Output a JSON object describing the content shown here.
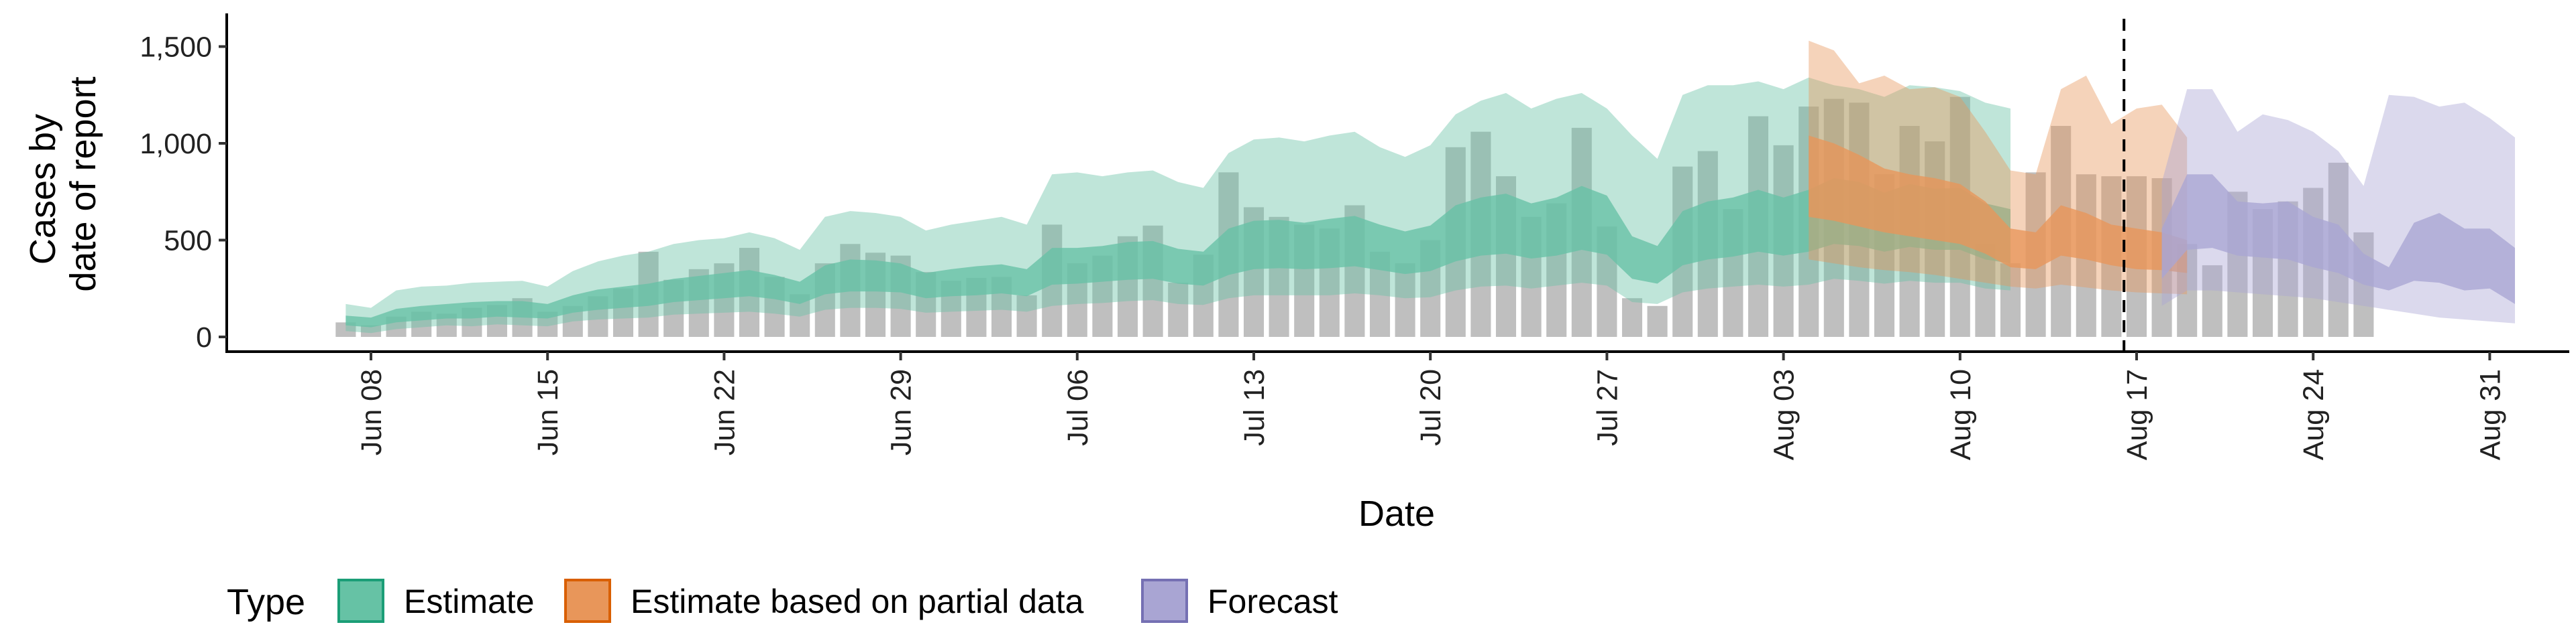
{
  "chart_data": {
    "type": "area",
    "xlabel": "Date",
    "ylabel_lines": [
      "Cases by",
      "date of report"
    ],
    "y_ticks": [
      0,
      500,
      1000,
      1500
    ],
    "y_tick_labels": [
      "0",
      "500",
      "1,000",
      "1,500"
    ],
    "ylim": [
      -70,
      1650
    ],
    "x_ticks": [
      "Jun 08",
      "Jun 15",
      "Jun 22",
      "Jun 29",
      "Jul 06",
      "Jul 13",
      "Jul 20",
      "Jul 27",
      "Aug 03",
      "Aug 10",
      "Aug 17",
      "Aug 24",
      "Aug 31"
    ],
    "x_tick_days": [
      0,
      7,
      14,
      21,
      28,
      35,
      42,
      49,
      56,
      63,
      70,
      77,
      84
    ],
    "x_origin_date": "Jun 08",
    "xlim_days": [
      -5.5,
      86.5
    ],
    "forecast_start_day": 69.5,
    "legend_title": "Type",
    "legend": [
      {
        "name": "Estimate",
        "fill": "#66c2a5",
        "stroke": "#1b9e77"
      },
      {
        "name": "Estimate based on partial data",
        "fill": "#e8965a",
        "stroke": "#d95f02"
      },
      {
        "name": "Forecast",
        "fill": "#a9a5d3",
        "stroke": "#7570b3"
      }
    ],
    "bars": {
      "color": "#a6a6a6",
      "start_day": -1,
      "values": [
        75,
        60,
        105,
        130,
        120,
        150,
        165,
        200,
        130,
        160,
        210,
        250,
        440,
        295,
        350,
        380,
        460,
        310,
        220,
        380,
        480,
        435,
        420,
        335,
        290,
        305,
        310,
        215,
        580,
        380,
        420,
        520,
        575,
        280,
        425,
        850,
        670,
        620,
        580,
        560,
        680,
        440,
        380,
        500,
        980,
        1060,
        830,
        620,
        690,
        1080,
        570,
        200,
        160,
        880,
        960,
        660,
        1140,
        990,
        1190,
        1230,
        1210,
        840,
        1090,
        1010,
        1240,
        480,
        380,
        850,
        1090,
        840,
        830,
        830,
        820,
        480,
        370,
        750,
        660,
        700,
        770,
        900,
        540
      ]
    },
    "series": [
      {
        "name": "Estimate",
        "start_day": -1,
        "values": {
          "lo90": [
            30,
            20,
            40,
            50,
            60,
            55,
            65,
            60,
            55,
            80,
            90,
            95,
            100,
            115,
            120,
            125,
            130,
            120,
            105,
            140,
            150,
            150,
            145,
            125,
            130,
            135,
            140,
            130,
            160,
            170,
            175,
            185,
            190,
            170,
            165,
            200,
            215,
            215,
            215,
            215,
            225,
            215,
            200,
            205,
            240,
            260,
            265,
            250,
            265,
            280,
            265,
            180,
            170,
            230,
            250,
            260,
            270,
            260,
            270,
            300,
            290,
            275,
            290,
            280,
            280,
            250,
            240
          ],
          "lo50": [
            60,
            50,
            75,
            85,
            95,
            95,
            105,
            100,
            95,
            125,
            140,
            150,
            160,
            180,
            190,
            200,
            210,
            195,
            170,
            220,
            235,
            235,
            230,
            200,
            210,
            215,
            225,
            210,
            270,
            275,
            285,
            295,
            300,
            275,
            265,
            320,
            350,
            355,
            350,
            355,
            365,
            345,
            325,
            340,
            390,
            420,
            430,
            405,
            420,
            450,
            425,
            300,
            275,
            370,
            400,
            415,
            440,
            420,
            440,
            480,
            470,
            440,
            465,
            450,
            450,
            400,
            380
          ],
          "hi50": [
            110,
            100,
            145,
            160,
            170,
            180,
            185,
            185,
            170,
            215,
            245,
            260,
            275,
            300,
            315,
            330,
            345,
            320,
            285,
            370,
            400,
            395,
            380,
            330,
            350,
            365,
            375,
            350,
            460,
            460,
            470,
            490,
            495,
            455,
            440,
            560,
            600,
            605,
            590,
            610,
            625,
            580,
            545,
            575,
            680,
            720,
            740,
            690,
            720,
            780,
            730,
            520,
            470,
            650,
            700,
            720,
            760,
            720,
            760,
            820,
            800,
            745,
            790,
            765,
            770,
            690,
            660
          ],
          "hi90": [
            170,
            150,
            240,
            260,
            265,
            280,
            285,
            290,
            260,
            340,
            390,
            420,
            440,
            480,
            500,
            510,
            540,
            510,
            450,
            620,
            650,
            640,
            620,
            550,
            580,
            600,
            620,
            580,
            840,
            850,
            830,
            850,
            860,
            800,
            770,
            950,
            1020,
            1030,
            1010,
            1040,
            1060,
            980,
            930,
            990,
            1150,
            1220,
            1260,
            1180,
            1230,
            1260,
            1180,
            1040,
            920,
            1250,
            1300,
            1300,
            1320,
            1280,
            1340,
            1300,
            1280,
            1240,
            1300,
            1290,
            1270,
            1210,
            1180
          ]
        }
      },
      {
        "name": "Estimate based on partial data",
        "start_day": 57,
        "values": {
          "lo90": [
            400,
            380,
            360,
            345,
            335,
            320,
            300,
            280,
            260,
            250,
            270,
            255,
            240,
            230,
            225,
            220
          ],
          "lo50": [
            620,
            600,
            570,
            540,
            520,
            500,
            480,
            430,
            360,
            350,
            420,
            400,
            370,
            350,
            345,
            330
          ],
          "hi50": [
            1040,
            1000,
            940,
            870,
            840,
            820,
            790,
            700,
            560,
            540,
            680,
            640,
            580,
            560,
            540,
            500
          ],
          "hi90": [
            1530,
            1480,
            1310,
            1350,
            1280,
            1290,
            1240,
            1060,
            860,
            840,
            1280,
            1350,
            1100,
            1180,
            1200,
            1030
          ]
        }
      },
      {
        "name": "Forecast",
        "start_day": 71,
        "values": {
          "lo90": [
            160,
            240,
            240,
            230,
            220,
            210,
            200,
            180,
            160,
            140,
            120,
            100,
            90,
            80,
            70
          ],
          "lo50": [
            300,
            450,
            460,
            420,
            410,
            400,
            360,
            330,
            270,
            240,
            290,
            280,
            240,
            250,
            170
          ],
          "hi50": [
            560,
            840,
            840,
            700,
            690,
            700,
            620,
            580,
            430,
            360,
            590,
            640,
            560,
            560,
            460
          ],
          "hi90": [
            800,
            1280,
            1280,
            1060,
            1150,
            1120,
            1060,
            960,
            780,
            1250,
            1240,
            1190,
            1210,
            1130,
            1030
          ]
        }
      }
    ]
  }
}
